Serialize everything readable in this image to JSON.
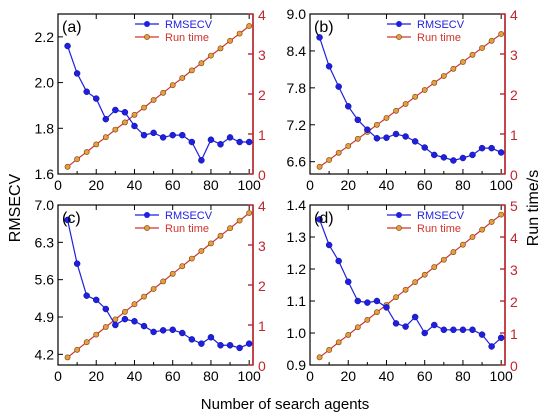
{
  "figure": {
    "ylabel_left": "RMSECV",
    "ylabel_right": "Run time/s",
    "xlabel": "Number of search agents"
  },
  "colors": {
    "rmsecv": "#1f1fe0",
    "runtime_line": "#d0342c",
    "runtime_marker_fill": "#e4a03c",
    "right_axis": "#c0262d"
  },
  "chart_data": [
    {
      "type": "line",
      "panel": "(a)",
      "x": [
        5,
        10,
        15,
        20,
        25,
        30,
        35,
        40,
        45,
        50,
        55,
        60,
        65,
        70,
        75,
        80,
        85,
        90,
        95,
        100
      ],
      "xticks": [
        0,
        20,
        40,
        60,
        80,
        100
      ],
      "xlim": [
        0,
        102
      ],
      "ylim_left": [
        1.6,
        2.3
      ],
      "yticks_left": [
        "1.6",
        "1.8",
        "2.0",
        "2.2"
      ],
      "ylim_right": [
        0,
        4
      ],
      "yticks_right": [
        "0",
        "1",
        "2",
        "3",
        "4"
      ],
      "legend": "top-right",
      "series": [
        {
          "name": "RMSECV",
          "axis": "left",
          "values": [
            2.16,
            2.04,
            1.96,
            1.93,
            1.84,
            1.88,
            1.87,
            1.81,
            1.77,
            1.78,
            1.76,
            1.77,
            1.77,
            1.74,
            1.66,
            1.75,
            1.73,
            1.76,
            1.74,
            1.74
          ]
        },
        {
          "name": "Run time",
          "axis": "right",
          "values": [
            0.18,
            0.37,
            0.55,
            0.74,
            0.92,
            1.11,
            1.29,
            1.48,
            1.66,
            1.85,
            2.03,
            2.22,
            2.4,
            2.59,
            2.77,
            2.96,
            3.14,
            3.33,
            3.51,
            3.7
          ]
        }
      ]
    },
    {
      "type": "line",
      "panel": "(b)",
      "x": [
        5,
        10,
        15,
        20,
        25,
        30,
        35,
        40,
        45,
        50,
        55,
        60,
        65,
        70,
        75,
        80,
        85,
        90,
        95,
        100
      ],
      "xticks": [
        0,
        20,
        40,
        60,
        80,
        100
      ],
      "xlim": [
        0,
        102
      ],
      "ylim_left": [
        6.4,
        9.0
      ],
      "yticks_left": [
        "6.6",
        "7.2",
        "7.8",
        "8.4",
        "9.0"
      ],
      "ylim_right": [
        0,
        4
      ],
      "yticks_right": [
        "0",
        "1",
        "2",
        "3",
        "4"
      ],
      "legend": "top-right",
      "series": [
        {
          "name": "RMSECV",
          "axis": "left",
          "values": [
            8.62,
            8.15,
            7.82,
            7.5,
            7.28,
            7.12,
            6.98,
            6.99,
            7.05,
            7.01,
            6.93,
            6.83,
            6.71,
            6.67,
            6.62,
            6.66,
            6.71,
            6.82,
            6.82,
            6.75
          ]
        },
        {
          "name": "Run time",
          "axis": "right",
          "values": [
            0.18,
            0.35,
            0.53,
            0.7,
            0.88,
            1.05,
            1.23,
            1.4,
            1.58,
            1.75,
            1.93,
            2.1,
            2.28,
            2.45,
            2.63,
            2.8,
            2.98,
            3.15,
            3.33,
            3.5
          ]
        }
      ]
    },
    {
      "type": "line",
      "panel": "(c)",
      "x": [
        5,
        10,
        15,
        20,
        25,
        30,
        35,
        40,
        45,
        50,
        55,
        60,
        65,
        70,
        75,
        80,
        85,
        90,
        95,
        100
      ],
      "xticks": [
        0,
        20,
        40,
        60,
        80,
        100
      ],
      "xlim": [
        0,
        102
      ],
      "ylim_left": [
        4.0,
        7.0
      ],
      "yticks_left": [
        "4.2",
        "4.9",
        "5.6",
        "6.3",
        "7.0"
      ],
      "ylim_right": [
        0,
        4
      ],
      "yticks_right": [
        "0",
        "1",
        "2",
        "3",
        "4"
      ],
      "legend": "top-right",
      "series": [
        {
          "name": "RMSECV",
          "axis": "left",
          "values": [
            6.72,
            5.9,
            5.3,
            5.22,
            5.05,
            4.75,
            4.86,
            4.82,
            4.73,
            4.62,
            4.65,
            4.66,
            4.6,
            4.48,
            4.4,
            4.52,
            4.37,
            4.37,
            4.32,
            4.4
          ]
        },
        {
          "name": "Run time",
          "axis": "right",
          "values": [
            0.19,
            0.38,
            0.57,
            0.76,
            0.95,
            1.14,
            1.33,
            1.52,
            1.71,
            1.9,
            2.09,
            2.28,
            2.47,
            2.66,
            2.85,
            3.04,
            3.23,
            3.42,
            3.61,
            3.8
          ]
        }
      ]
    },
    {
      "type": "line",
      "panel": "(d)",
      "x": [
        5,
        10,
        15,
        20,
        25,
        30,
        35,
        40,
        45,
        50,
        55,
        60,
        65,
        70,
        75,
        80,
        85,
        90,
        95,
        100
      ],
      "xticks": [
        0,
        20,
        40,
        60,
        80,
        100
      ],
      "xlim": [
        0,
        102
      ],
      "ylim_left": [
        0.9,
        1.4
      ],
      "yticks_left": [
        "0.9",
        "1.0",
        "1.1",
        "1.2",
        "1.3",
        "1.4"
      ],
      "ylim_right": [
        0,
        5
      ],
      "yticks_right": [
        "0",
        "1",
        "2",
        "3",
        "4",
        "5"
      ],
      "legend": "top-right",
      "series": [
        {
          "name": "RMSECV",
          "axis": "left",
          "values": [
            1.355,
            1.275,
            1.225,
            1.16,
            1.1,
            1.095,
            1.1,
            1.08,
            1.03,
            1.02,
            1.05,
            1.0,
            1.025,
            1.01,
            1.01,
            1.01,
            1.01,
            0.995,
            0.958,
            0.985
          ]
        },
        {
          "name": "Run time",
          "axis": "right",
          "values": [
            0.24,
            0.47,
            0.71,
            0.94,
            1.18,
            1.41,
            1.65,
            1.88,
            2.12,
            2.35,
            2.59,
            2.82,
            3.06,
            3.29,
            3.53,
            3.76,
            4.0,
            4.23,
            4.47,
            4.7
          ]
        }
      ]
    }
  ]
}
